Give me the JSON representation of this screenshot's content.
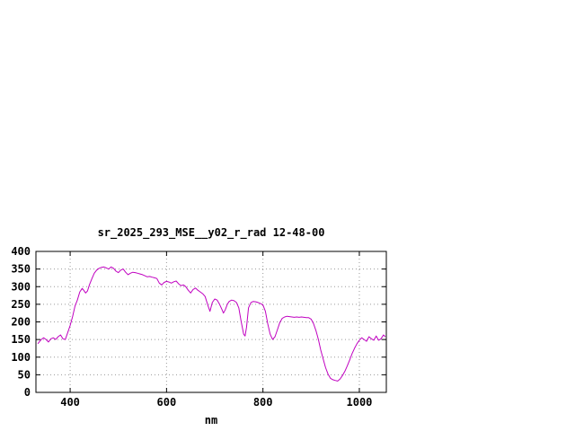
{
  "chart_data": {
    "type": "line",
    "title": "sr_2025_293_MSE__y02_r_rad 12-48-00",
    "xlabel": "nm",
    "ylabel": "",
    "xlim": [
      329,
      1056
    ],
    "ylim": [
      0,
      400
    ],
    "xticks": [
      400,
      600,
      800,
      1000
    ],
    "yticks": [
      0,
      50,
      100,
      150,
      200,
      250,
      300,
      350,
      400
    ],
    "grid": true,
    "grid_color": "#9a9a9a",
    "border_color": "#000000",
    "background": "#ffffff",
    "legend": "none",
    "series": [
      {
        "name": "sr_2025_293_MSE__y02_r_rad 12-48-00",
        "color": "#c000c0",
        "points": [
          [
            333,
            138
          ],
          [
            340,
            150
          ],
          [
            345,
            155
          ],
          [
            350,
            150
          ],
          [
            355,
            143
          ],
          [
            360,
            152
          ],
          [
            365,
            155
          ],
          [
            370,
            150
          ],
          [
            375,
            158
          ],
          [
            380,
            163
          ],
          [
            385,
            152
          ],
          [
            390,
            150
          ],
          [
            395,
            170
          ],
          [
            400,
            190
          ],
          [
            405,
            215
          ],
          [
            410,
            245
          ],
          [
            415,
            262
          ],
          [
            420,
            285
          ],
          [
            425,
            295
          ],
          [
            428,
            290
          ],
          [
            432,
            282
          ],
          [
            436,
            288
          ],
          [
            440,
            305
          ],
          [
            445,
            322
          ],
          [
            450,
            338
          ],
          [
            455,
            347
          ],
          [
            460,
            352
          ],
          [
            465,
            355
          ],
          [
            470,
            356
          ],
          [
            475,
            353
          ],
          [
            480,
            350
          ],
          [
            485,
            356
          ],
          [
            490,
            352
          ],
          [
            495,
            344
          ],
          [
            500,
            340
          ],
          [
            505,
            347
          ],
          [
            510,
            350
          ],
          [
            515,
            341
          ],
          [
            520,
            334
          ],
          [
            525,
            338
          ],
          [
            530,
            341
          ],
          [
            535,
            340
          ],
          [
            540,
            338
          ],
          [
            545,
            336
          ],
          [
            550,
            334
          ],
          [
            555,
            331
          ],
          [
            560,
            328
          ],
          [
            565,
            329
          ],
          [
            570,
            327
          ],
          [
            575,
            325
          ],
          [
            580,
            323
          ],
          [
            585,
            310
          ],
          [
            590,
            305
          ],
          [
            595,
            312
          ],
          [
            600,
            315
          ],
          [
            605,
            313
          ],
          [
            610,
            310
          ],
          [
            615,
            314
          ],
          [
            620,
            316
          ],
          [
            625,
            308
          ],
          [
            630,
            303
          ],
          [
            635,
            305
          ],
          [
            640,
            300
          ],
          [
            645,
            290
          ],
          [
            650,
            282
          ],
          [
            655,
            292
          ],
          [
            660,
            296
          ],
          [
            665,
            290
          ],
          [
            670,
            285
          ],
          [
            675,
            280
          ],
          [
            680,
            272
          ],
          [
            685,
            250
          ],
          [
            690,
            230
          ],
          [
            695,
            255
          ],
          [
            700,
            265
          ],
          [
            705,
            262
          ],
          [
            710,
            250
          ],
          [
            715,
            235
          ],
          [
            718,
            225
          ],
          [
            722,
            235
          ],
          [
            726,
            250
          ],
          [
            730,
            258
          ],
          [
            735,
            262
          ],
          [
            740,
            260
          ],
          [
            745,
            255
          ],
          [
            750,
            240
          ],
          [
            755,
            200
          ],
          [
            760,
            165
          ],
          [
            763,
            160
          ],
          [
            766,
            185
          ],
          [
            770,
            240
          ],
          [
            775,
            255
          ],
          [
            780,
            258
          ],
          [
            785,
            257
          ],
          [
            790,
            255
          ],
          [
            795,
            252
          ],
          [
            800,
            248
          ],
          [
            805,
            230
          ],
          [
            810,
            195
          ],
          [
            815,
            165
          ],
          [
            820,
            150
          ],
          [
            825,
            158
          ],
          [
            830,
            178
          ],
          [
            835,
            198
          ],
          [
            840,
            210
          ],
          [
            845,
            214
          ],
          [
            850,
            216
          ],
          [
            855,
            215
          ],
          [
            860,
            214
          ],
          [
            865,
            213
          ],
          [
            870,
            214
          ],
          [
            875,
            213
          ],
          [
            880,
            214
          ],
          [
            885,
            213
          ],
          [
            890,
            212
          ],
          [
            895,
            212
          ],
          [
            900,
            208
          ],
          [
            905,
            195
          ],
          [
            910,
            175
          ],
          [
            915,
            150
          ],
          [
            920,
            120
          ],
          [
            925,
            95
          ],
          [
            930,
            70
          ],
          [
            935,
            52
          ],
          [
            940,
            40
          ],
          [
            945,
            36
          ],
          [
            950,
            34
          ],
          [
            955,
            32
          ],
          [
            960,
            38
          ],
          [
            965,
            48
          ],
          [
            970,
            60
          ],
          [
            975,
            75
          ],
          [
            980,
            92
          ],
          [
            985,
            110
          ],
          [
            990,
            125
          ],
          [
            995,
            138
          ],
          [
            1000,
            148
          ],
          [
            1005,
            155
          ],
          [
            1010,
            150
          ],
          [
            1015,
            145
          ],
          [
            1020,
            158
          ],
          [
            1025,
            152
          ],
          [
            1030,
            148
          ],
          [
            1035,
            160
          ],
          [
            1040,
            148
          ],
          [
            1045,
            152
          ],
          [
            1050,
            163
          ],
          [
            1054,
            158
          ]
        ]
      }
    ]
  }
}
